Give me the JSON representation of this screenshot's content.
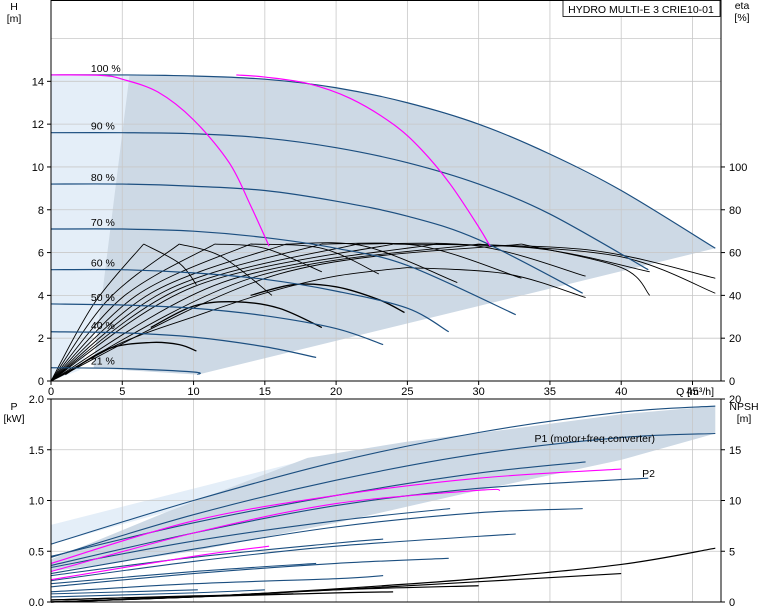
{
  "title": "HYDRO MULTI-E 3 CRIE10-01",
  "colors": {
    "curve": "#1c4f80",
    "eff_line": "#000000",
    "system": "#ff00ff",
    "region_dark": "#cdd9e5",
    "region_light": "#e4eef8",
    "grid": "#c8c8c8",
    "label": "#1a4f86"
  },
  "chart_data": [
    {
      "id": "head",
      "type": "line",
      "xlabel": "Q [m³/h]",
      "ylabel_left": [
        "H",
        "[m]"
      ],
      "ylabel_right": [
        "eta",
        "[%]"
      ],
      "xlim": [
        0,
        47
      ],
      "ylim": [
        0,
        17.8
      ],
      "x_ticks": [
        0,
        5,
        10,
        15,
        20,
        25,
        30,
        35,
        40,
        45
      ],
      "y_ticks": [
        0,
        2,
        4,
        6,
        8,
        10,
        12,
        14
      ],
      "eta_ticks": [
        0,
        20,
        40,
        60,
        80,
        100
      ],
      "eta_ylim": [
        0,
        178
      ],
      "grid": true,
      "speed_curves": [
        {
          "label": "100 %",
          "points": [
            [
              0,
              14.3
            ],
            [
              5,
              14.3
            ],
            [
              10,
              14.25
            ],
            [
              15,
              14.1
            ],
            [
              20,
              13.7
            ],
            [
              25,
              13.0
            ],
            [
              30,
              12.0
            ],
            [
              35,
              10.6
            ],
            [
              40,
              8.9
            ],
            [
              46.6,
              6.2
            ]
          ]
        },
        {
          "label": "90 %",
          "points": [
            [
              0,
              11.6
            ],
            [
              5,
              11.6
            ],
            [
              10,
              11.55
            ],
            [
              15,
              11.35
            ],
            [
              20,
              10.9
            ],
            [
              25,
              10.2
            ],
            [
              30,
              9.2
            ],
            [
              35,
              7.8
            ],
            [
              41.9,
              5.2
            ]
          ]
        },
        {
          "label": "80 %",
          "points": [
            [
              0,
              9.2
            ],
            [
              5,
              9.2
            ],
            [
              10,
              9.1
            ],
            [
              15,
              8.9
            ],
            [
              20,
              8.4
            ],
            [
              25,
              7.7
            ],
            [
              30,
              6.6
            ],
            [
              37.3,
              4.1
            ]
          ]
        },
        {
          "label": "70 %",
          "points": [
            [
              0,
              7.1
            ],
            [
              5,
              7.1
            ],
            [
              10,
              7.0
            ],
            [
              15,
              6.7
            ],
            [
              20,
              6.2
            ],
            [
              25,
              5.4
            ],
            [
              32.6,
              3.1
            ]
          ]
        },
        {
          "label": "60 %",
          "points": [
            [
              0,
              5.2
            ],
            [
              5,
              5.2
            ],
            [
              10,
              5.05
            ],
            [
              15,
              4.75
            ],
            [
              20,
              4.2
            ],
            [
              25,
              3.4
            ],
            [
              27.9,
              2.3
            ]
          ]
        },
        {
          "label": "50 %",
          "points": [
            [
              0,
              3.6
            ],
            [
              5,
              3.55
            ],
            [
              10,
              3.4
            ],
            [
              15,
              3.05
            ],
            [
              20,
              2.45
            ],
            [
              23.3,
              1.7
            ]
          ]
        },
        {
          "label": "40 %",
          "points": [
            [
              0,
              2.3
            ],
            [
              5,
              2.25
            ],
            [
              10,
              2.05
            ],
            [
              15,
              1.6
            ],
            [
              18.6,
              1.1
            ]
          ]
        },
        {
          "label": "21 %",
          "points": [
            [
              0,
              0.62
            ],
            [
              5,
              0.58
            ],
            [
              10,
              0.42
            ],
            [
              10.3,
              0.3
            ]
          ]
        }
      ],
      "system_curves": [
        [
          [
            0,
            14.3
          ],
          [
            3.5,
            14.28
          ],
          [
            5,
            14.1
          ],
          [
            7.5,
            13.5
          ],
          [
            10,
            12.2
          ],
          [
            12.5,
            10.2
          ],
          [
            14,
            8.2
          ],
          [
            15.3,
            6.3
          ]
        ],
        [
          [
            13,
            14.3
          ],
          [
            15,
            14.2
          ],
          [
            18,
            13.9
          ],
          [
            21,
            13.2
          ],
          [
            24,
            12.0
          ],
          [
            26,
            10.8
          ],
          [
            28,
            9.2
          ],
          [
            30,
            7.2
          ],
          [
            30.8,
            6.3
          ]
        ]
      ],
      "eff_curves_rising": [
        [
          [
            0,
            0
          ],
          [
            3,
            3.6
          ],
          [
            6.5,
            6.4
          ]
        ],
        [
          [
            0,
            0
          ],
          [
            4,
            3.8
          ],
          [
            9,
            6.4
          ]
        ],
        [
          [
            0,
            0
          ],
          [
            5,
            3.9
          ],
          [
            11.5,
            6.4
          ]
        ],
        [
          [
            0,
            0
          ],
          [
            6,
            4.0
          ],
          [
            14,
            6.4
          ]
        ],
        [
          [
            0,
            0
          ],
          [
            7,
            4.1
          ],
          [
            16.5,
            6.4
          ]
        ],
        [
          [
            0,
            0
          ],
          [
            8,
            4.2
          ],
          [
            19,
            6.4
          ]
        ],
        [
          [
            0,
            0
          ],
          [
            9,
            4.3
          ],
          [
            21.5,
            6.4
          ]
        ],
        [
          [
            0,
            0
          ],
          [
            10,
            4.4
          ],
          [
            24,
            6.4
          ]
        ],
        [
          [
            0,
            0
          ],
          [
            12,
            4.6
          ],
          [
            27,
            6.4
          ]
        ],
        [
          [
            0,
            0
          ],
          [
            14,
            4.8
          ],
          [
            30,
            6.4
          ]
        ],
        [
          [
            0,
            0
          ],
          [
            16,
            5.0
          ],
          [
            33,
            6.4
          ]
        ],
        [
          [
            0,
            0
          ],
          [
            5,
            1.8
          ],
          [
            10,
            3.0
          ],
          [
            15,
            4.1
          ],
          [
            20,
            4.9
          ],
          [
            25,
            5.3
          ]
        ]
      ],
      "eff_curves_falling": [
        [
          [
            6.5,
            6.4
          ],
          [
            9,
            5.5
          ],
          [
            10.2,
            4.5
          ]
        ],
        [
          [
            9,
            6.4
          ],
          [
            12,
            5.8
          ],
          [
            15.5,
            4.0
          ]
        ],
        [
          [
            11.5,
            6.4
          ],
          [
            15,
            6.2
          ],
          [
            19,
            5.1
          ]
        ],
        [
          [
            14,
            6.4
          ],
          [
            19,
            6.2
          ],
          [
            23,
            5.0
          ]
        ],
        [
          [
            16.5,
            6.4
          ],
          [
            22,
            6.3
          ],
          [
            28.5,
            4.6
          ]
        ],
        [
          [
            19,
            6.4
          ],
          [
            26,
            6.3
          ],
          [
            33,
            4.8
          ]
        ],
        [
          [
            21.5,
            6.4
          ],
          [
            30,
            6.3
          ],
          [
            37.5,
            4.9
          ]
        ],
        [
          [
            24,
            6.4
          ],
          [
            34,
            6.2
          ],
          [
            42,
            5.1
          ]
        ],
        [
          [
            27,
            6.4
          ],
          [
            38,
            6.1
          ],
          [
            46.6,
            4.8
          ]
        ],
        [
          [
            30,
            6.4
          ],
          [
            40,
            5.8
          ],
          [
            46.6,
            4.1
          ]
        ],
        [
          [
            33,
            6.4
          ],
          [
            40,
            5.3
          ],
          [
            42,
            4.0
          ]
        ],
        [
          [
            25,
            5.3
          ],
          [
            32,
            5.0
          ],
          [
            37.5,
            3.9
          ]
        ]
      ],
      "small_eff_humps": [
        [
          [
            1,
            0.3
          ],
          [
            4,
            1.5
          ],
          [
            7,
            1.8
          ],
          [
            9,
            1.7
          ],
          [
            10.2,
            1.4
          ]
        ],
        [
          [
            7,
            2.5
          ],
          [
            10,
            3.5
          ],
          [
            13,
            3.7
          ],
          [
            16,
            3.4
          ],
          [
            19,
            2.5
          ]
        ],
        [
          [
            14,
            4.0
          ],
          [
            17,
            4.5
          ],
          [
            20,
            4.4
          ],
          [
            23,
            3.8
          ],
          [
            24.8,
            3.2
          ]
        ]
      ]
    },
    {
      "id": "power",
      "type": "line",
      "ylabel_left": [
        "P",
        "[kW]"
      ],
      "ylabel_right": [
        "NPSH",
        "[m]"
      ],
      "xlim": [
        0,
        47
      ],
      "ylim": [
        0,
        2.0
      ],
      "y_ticks": [
        0.0,
        0.5,
        1.0,
        1.5,
        2.0
      ],
      "npsh_ticks": [
        0,
        5,
        10,
        15,
        20
      ],
      "npsh_ylim": [
        0,
        20
      ],
      "grid": true,
      "series_labels": [
        "P1 (motor+freq.converter)",
        "P2"
      ],
      "p1_curves": [
        [
          [
            0,
            0.57
          ],
          [
            10,
            1.0
          ],
          [
            20,
            1.38
          ],
          [
            30,
            1.67
          ],
          [
            40,
            1.87
          ],
          [
            46.6,
            1.93
          ]
        ],
        [
          [
            0,
            0.45
          ],
          [
            10,
            0.78
          ],
          [
            20,
            1.05
          ],
          [
            30,
            1.27
          ],
          [
            37.5,
            1.38
          ]
        ],
        [
          [
            0,
            0.34
          ],
          [
            10,
            0.6
          ],
          [
            20,
            0.8
          ],
          [
            28,
            0.92
          ]
        ],
        [
          [
            0,
            0.26
          ],
          [
            10,
            0.44
          ],
          [
            20,
            0.58
          ],
          [
            23.3,
            0.62
          ]
        ],
        [
          [
            0,
            0.18
          ],
          [
            10,
            0.3
          ],
          [
            18.6,
            0.38
          ]
        ],
        [
          [
            0,
            0.08
          ],
          [
            10.3,
            0.12
          ]
        ]
      ],
      "p2_curves": [
        [
          [
            0,
            0.44
          ],
          [
            10,
            0.86
          ],
          [
            20,
            1.2
          ],
          [
            30,
            1.46
          ],
          [
            40,
            1.62
          ],
          [
            46.6,
            1.66
          ]
        ],
        [
          [
            0,
            0.36
          ],
          [
            10,
            0.68
          ],
          [
            20,
            0.95
          ],
          [
            30,
            1.12
          ],
          [
            41.9,
            1.22
          ]
        ],
        [
          [
            0,
            0.28
          ],
          [
            10,
            0.52
          ],
          [
            20,
            0.74
          ],
          [
            30,
            0.88
          ],
          [
            37.3,
            0.92
          ]
        ],
        [
          [
            0,
            0.21
          ],
          [
            10,
            0.4
          ],
          [
            20,
            0.55
          ],
          [
            32.6,
            0.67
          ]
        ],
        [
          [
            0,
            0.15
          ],
          [
            10,
            0.28
          ],
          [
            20,
            0.38
          ],
          [
            27.9,
            0.43
          ]
        ],
        [
          [
            0,
            0.1
          ],
          [
            10,
            0.18
          ],
          [
            20,
            0.23
          ],
          [
            23.3,
            0.26
          ]
        ],
        [
          [
            0,
            0.05
          ],
          [
            10,
            0.09
          ],
          [
            15,
            0.12
          ]
        ]
      ],
      "p_system_curves": [
        [
          [
            0,
            0.38
          ],
          [
            10,
            0.8
          ],
          [
            20,
            1.05
          ],
          [
            30,
            1.22
          ],
          [
            40,
            1.31
          ]
        ],
        [
          [
            0,
            0.3
          ],
          [
            10,
            0.68
          ],
          [
            20,
            0.97
          ],
          [
            30,
            1.1
          ],
          [
            31.5,
            1.1
          ]
        ],
        [
          [
            0,
            0.22
          ],
          [
            10,
            0.45
          ],
          [
            15.3,
            0.55
          ]
        ]
      ],
      "npsh_curves": [
        [
          [
            0,
            0.0
          ],
          [
            10,
            0.05
          ],
          [
            20,
            0.13
          ],
          [
            30,
            0.23
          ],
          [
            40,
            0.37
          ],
          [
            46.6,
            0.53
          ]
        ],
        [
          [
            0,
            0.0
          ],
          [
            10,
            0.05
          ],
          [
            20,
            0.12
          ],
          [
            30,
            0.2
          ],
          [
            40,
            0.28
          ]
        ],
        [
          [
            0,
            0.0
          ],
          [
            10,
            0.05
          ],
          [
            20,
            0.12
          ],
          [
            30,
            0.16
          ]
        ],
        [
          [
            0,
            0.0
          ],
          [
            10,
            0.05
          ],
          [
            20,
            0.09
          ],
          [
            24,
            0.1
          ]
        ],
        [
          [
            0,
            0.02
          ],
          [
            10,
            0.06
          ],
          [
            17,
            0.08
          ]
        ],
        [
          [
            0,
            0.02
          ],
          [
            5,
            0.04
          ],
          [
            10.3,
            0.05
          ]
        ]
      ]
    }
  ]
}
